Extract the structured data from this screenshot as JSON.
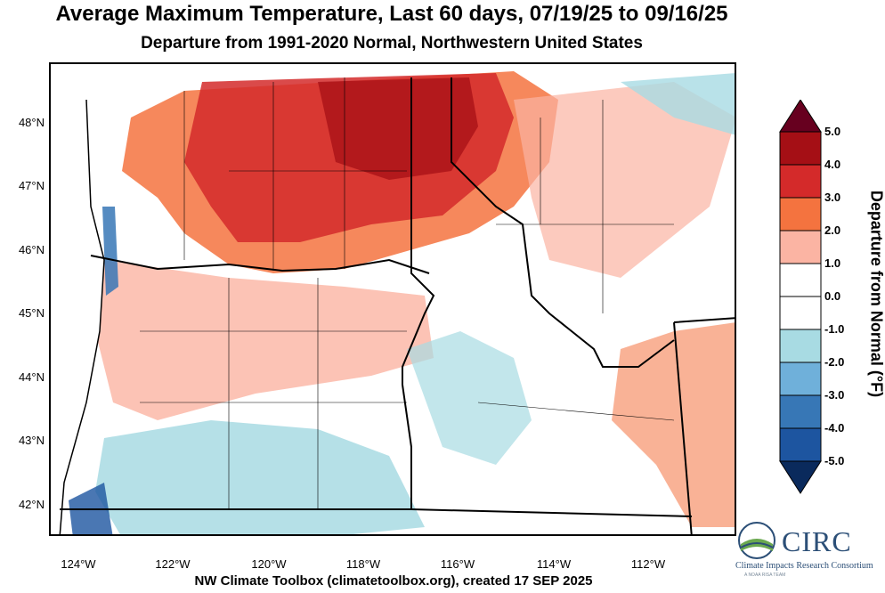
{
  "title": "Average Maximum Temperature, Last 60 days, 07/19/25 to 09/16/25",
  "subtitle": "Departure from 1991-2020 Normal, Northwestern United States",
  "footer": "NW Climate Toolbox (climatetoolbox.org), created 17 SEP 2025",
  "lat_labels": [
    "48°N",
    "47°N",
    "46°N",
    "45°N",
    "44°N",
    "43°N",
    "42°N"
  ],
  "lon_labels": [
    "124°W",
    "122°W",
    "120°W",
    "118°W",
    "116°W",
    "114°W",
    "112°W"
  ],
  "colorbar": {
    "title": "Departure from Normal (°F)",
    "tick_labels": [
      "5.0",
      "4.0",
      "3.0",
      "2.0",
      "1.0",
      "0.0",
      "-1.0",
      "-2.0",
      "-3.0",
      "-4.0",
      "-5.0"
    ],
    "colors": [
      "#67001f",
      "#a50f15",
      "#d42a2a",
      "#f4733f",
      "#fbb4a3",
      "#ffffff",
      "#ffffff",
      "#a8dbe3",
      "#6fb0da",
      "#3777b6",
      "#1d55a0",
      "#0a2a5c"
    ]
  },
  "logo": {
    "name": "CIRC",
    "subtitle": "Climate Impacts Research Consortium",
    "tagline": "A NOAA RISA TEAM",
    "colors": [
      "#2c4f77",
      "#6aa84f"
    ]
  }
}
